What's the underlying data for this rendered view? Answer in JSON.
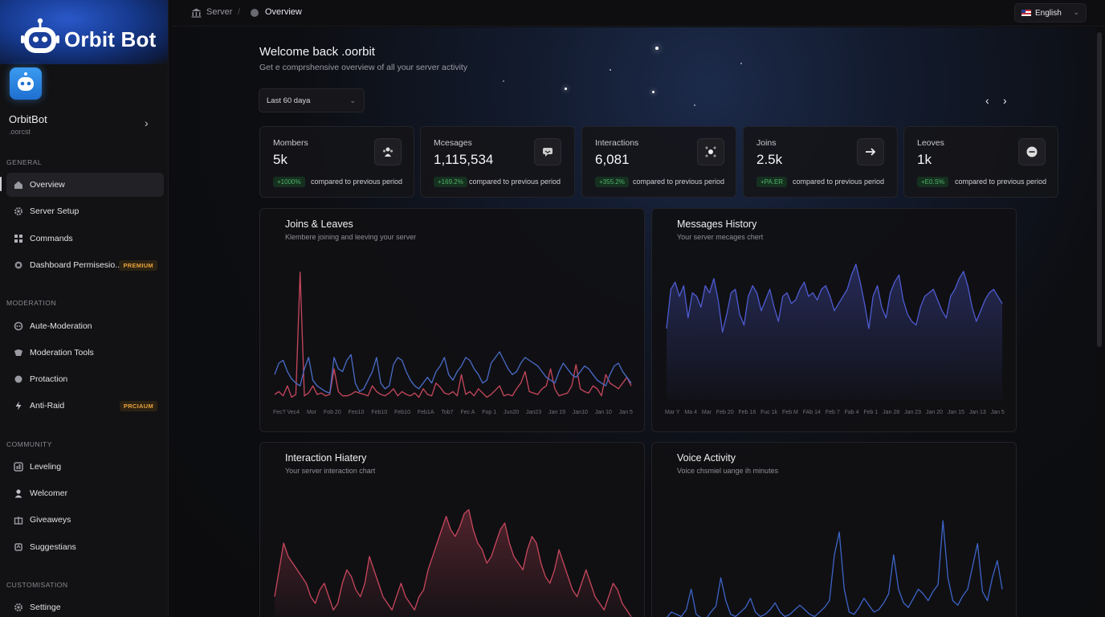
{
  "brand": {
    "name": "Orbit Bot"
  },
  "bot": {
    "name": "OrbitBot",
    "handle": ".oorcst"
  },
  "sidebar": {
    "sections": [
      {
        "label": "GENERAL",
        "items": [
          {
            "label": "Overview",
            "icon": "home-icon",
            "active": true
          },
          {
            "label": "Server Setup",
            "icon": "gear-icon"
          },
          {
            "label": "Commands",
            "icon": "grid-icon"
          },
          {
            "label": "Dashboard Permisesio...",
            "icon": "shield-icon",
            "badge": "PREMIUM"
          }
        ]
      },
      {
        "label": "MODERATION",
        "items": [
          {
            "label": "Aute-Moderation",
            "icon": "robot-icon"
          },
          {
            "label": "Moderation Tools",
            "icon": "hammer-icon"
          },
          {
            "label": "Protaction",
            "icon": "lock-icon"
          },
          {
            "label": "Anti-Raid",
            "icon": "bolt-icon",
            "badge": "PRCIAUM"
          }
        ]
      },
      {
        "label": "COMMUNITY",
        "items": [
          {
            "label": "Leveling",
            "icon": "chart-icon"
          },
          {
            "label": "Welcomer",
            "icon": "user-icon"
          },
          {
            "label": "Giveaweys",
            "icon": "gift-icon"
          },
          {
            "label": "Suggestians",
            "icon": "lightbulb-icon"
          }
        ]
      },
      {
        "label": "CUSTOMISATION",
        "items": [
          {
            "label": "Settinge",
            "icon": "gear-icon"
          }
        ]
      }
    ]
  },
  "topbar": {
    "breadcrumb": {
      "root": "Server",
      "separator": "/",
      "current": "Overview"
    },
    "language": "English"
  },
  "header": {
    "welcome": "Welcome back .oorbit",
    "subtitle": "Get e comprshensive overview of all your server activity",
    "range": "Last 60 daya"
  },
  "stats": [
    {
      "label": "Mombers",
      "value": "5k",
      "change": "+1000%",
      "compare": "compared to previous period",
      "icon": "members-icon"
    },
    {
      "label": "Mcesages",
      "value": "1,115,534",
      "change": "+169.2%",
      "compare": "compared to previous period",
      "icon": "message-icon"
    },
    {
      "label": "Interactions",
      "value": "6,081",
      "change": "+355.2%",
      "compare": "compared to previous period",
      "icon": "interactions-icon"
    },
    {
      "label": "Joins",
      "value": "2.5k",
      "change": "+PA.ER",
      "compare": "compared to previous period",
      "icon": "arrow-right-icon"
    },
    {
      "label": "Leoves",
      "value": "1k",
      "change": "+E0.S%",
      "compare": "compared to previous period",
      "icon": "minus-circle-icon"
    }
  ],
  "panels": {
    "joins_leaves": {
      "title": "Joins & Leaves",
      "subtitle": "Klembere joining and leeving your server",
      "ticks": [
        "Fec? Vec4",
        "Mor",
        "Fob 20",
        "Feo10",
        "Feb10",
        "Feb10",
        "Feb1A",
        "Tob7",
        "Fec A",
        "Fop 1",
        "Jun20",
        "Jan23",
        "Jan 19",
        "Jan10",
        "Jan 10",
        "Jan 5"
      ]
    },
    "messages_history": {
      "title": "Messages History",
      "subtitle": "Your server mecages chert",
      "ticks": [
        "Mar Y",
        "Ma 4",
        "Mar",
        "Feb 20",
        "Feb 16",
        "Fuc 1k",
        "Feb M",
        "FAb 14",
        "Feb 7",
        "Fab 4",
        "Feb 1",
        "Jan 28",
        "Jan 23",
        "Jan 20",
        "Jan 15",
        "Jan 13",
        "Jan 5"
      ]
    },
    "interaction_history": {
      "title": "Interaction Hiatery",
      "subtitle": "Your server interaction chart"
    },
    "voice_activity": {
      "title": "Voice Activity",
      "subtitle": "Voice chsmiel uange ih minutes"
    }
  },
  "chart_data": [
    {
      "type": "line",
      "title": "Joins & Leaves",
      "series": [
        {
          "color": "#c8475c",
          "values": [
            4,
            6,
            3,
            10,
            2,
            4,
            90,
            3,
            5,
            10,
            4,
            5,
            3,
            4,
            22,
            6,
            3,
            3,
            4,
            6,
            5,
            4,
            3,
            10,
            6,
            4,
            3,
            5,
            8,
            3,
            6,
            4,
            3,
            5,
            2,
            8,
            4,
            3,
            12,
            9,
            5,
            4,
            6,
            3,
            18,
            4,
            6,
            3,
            8,
            5,
            2,
            4,
            7,
            10,
            3,
            4,
            3,
            8,
            12,
            20,
            6,
            5,
            4,
            8,
            10,
            22,
            8,
            3,
            4,
            5,
            10,
            25,
            8,
            6,
            5,
            10,
            8,
            3,
            18,
            12,
            10,
            8,
            12,
            16,
            10
          ]
        },
        {
          "color": "#4a6cc8",
          "values": [
            18,
            26,
            28,
            20,
            15,
            12,
            10,
            22,
            30,
            14,
            10,
            8,
            6,
            5,
            30,
            22,
            20,
            28,
            32,
            12,
            6,
            8,
            14,
            20,
            30,
            12,
            8,
            10,
            25,
            30,
            28,
            20,
            14,
            10,
            8,
            12,
            16,
            12,
            20,
            24,
            30,
            18,
            14,
            20,
            24,
            30,
            28,
            22,
            18,
            12,
            14,
            26,
            30,
            34,
            28,
            22,
            18,
            20,
            26,
            30,
            28,
            26,
            24,
            20,
            16,
            14,
            12,
            20,
            26,
            22,
            18,
            16,
            20,
            24,
            22,
            18,
            14,
            12,
            10,
            18,
            24,
            26,
            20,
            16,
            12
          ]
        }
      ]
    },
    {
      "type": "area",
      "title": "Messages History",
      "series": [
        {
          "color": "#4e5bd2",
          "values": [
            40,
            62,
            66,
            58,
            64,
            46,
            60,
            58,
            52,
            64,
            60,
            68,
            56,
            38,
            48,
            60,
            62,
            48,
            42,
            58,
            64,
            60,
            50,
            56,
            62,
            52,
            44,
            58,
            60,
            54,
            56,
            62,
            66,
            58,
            60,
            56,
            62,
            64,
            58,
            50,
            54,
            58,
            62,
            70,
            76,
            66,
            54,
            40,
            58,
            64,
            52,
            46,
            60,
            66,
            70,
            56,
            48,
            44,
            42,
            52,
            58,
            60,
            62,
            56,
            50,
            46,
            58,
            62,
            68,
            72,
            64,
            52,
            44,
            50,
            56,
            60,
            62,
            58,
            54
          ]
        }
      ]
    },
    {
      "type": "area",
      "title": "Interaction History",
      "series": [
        {
          "color": "#c8475c",
          "values": [
            20,
            40,
            60,
            50,
            45,
            40,
            35,
            30,
            20,
            15,
            25,
            30,
            20,
            10,
            15,
            30,
            40,
            35,
            25,
            20,
            30,
            50,
            40,
            30,
            20,
            15,
            10,
            20,
            30,
            20,
            15,
            10,
            20,
            25,
            40,
            50,
            60,
            70,
            80,
            70,
            65,
            72,
            82,
            85,
            70,
            60,
            55,
            45,
            50,
            60,
            70,
            75,
            60,
            50,
            45,
            40,
            55,
            65,
            60,
            45,
            35,
            30,
            40,
            55,
            45,
            35,
            25,
            20,
            30,
            40,
            30,
            20,
            15,
            10,
            20,
            30,
            25,
            15,
            10,
            5
          ]
        }
      ]
    },
    {
      "type": "line",
      "title": "Voice Activity",
      "series": [
        {
          "color": "#3d64c8",
          "values": [
            5,
            10,
            8,
            6,
            12,
            30,
            8,
            5,
            4,
            10,
            15,
            40,
            20,
            8,
            6,
            10,
            14,
            22,
            10,
            6,
            8,
            12,
            18,
            10,
            6,
            8,
            12,
            16,
            12,
            8,
            6,
            10,
            14,
            20,
            60,
            80,
            30,
            10,
            8,
            14,
            22,
            16,
            10,
            12,
            18,
            26,
            60,
            30,
            18,
            14,
            22,
            30,
            26,
            20,
            28,
            34,
            90,
            40,
            20,
            16,
            24,
            30,
            50,
            70,
            28,
            20,
            40,
            55,
            30
          ]
        }
      ]
    }
  ]
}
